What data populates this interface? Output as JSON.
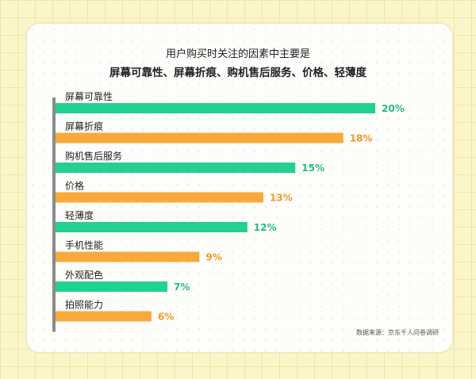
{
  "title_line1": "用户购买时关注的因素中主要是",
  "title_line2": "屏幕可靠性、屏幕折痕、购机售后服务、价格、轻薄度",
  "source": "数据来源：京东千人问卷调研",
  "colors": {
    "green": "#22d08f",
    "orange": "#f9a93a",
    "axis": "#8a8a8a",
    "green_label": "#1fbf84",
    "orange_label": "#f29a22"
  },
  "chart_data": {
    "type": "bar",
    "orientation": "horizontal",
    "title": "用户购买时关注的因素中主要是 屏幕可靠性、屏幕折痕、购机售后服务、价格、轻薄度",
    "categories": [
      "屏幕可靠性",
      "屏幕折痕",
      "购机售后服务",
      "价格",
      "轻薄度",
      "手机性能",
      "外观配色",
      "拍照能力"
    ],
    "values": [
      20,
      18,
      15,
      13,
      12,
      9,
      7,
      6
    ],
    "value_labels": [
      "20%",
      "18%",
      "15%",
      "13%",
      "12%",
      "9%",
      "7%",
      "6%"
    ],
    "bar_colors": [
      "green",
      "orange",
      "green",
      "orange",
      "green",
      "orange",
      "green",
      "orange"
    ],
    "xlim": [
      0,
      20
    ],
    "grid": false,
    "legend": "none"
  }
}
